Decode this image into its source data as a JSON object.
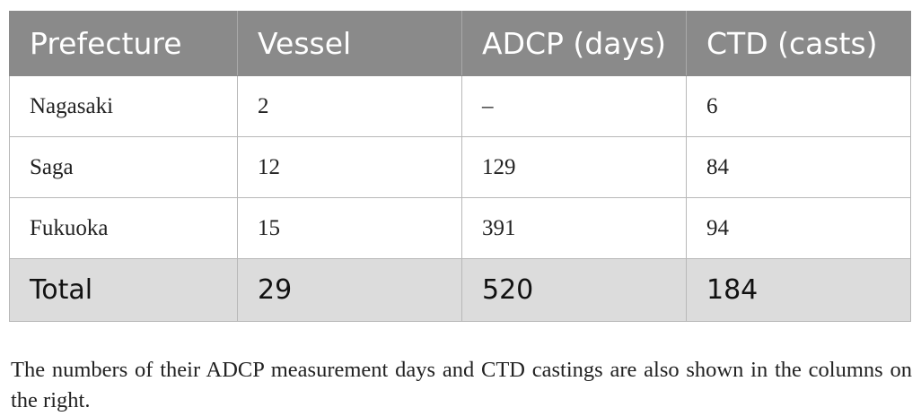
{
  "table": {
    "headers": [
      "Prefecture",
      "Vessel",
      "ADCP (days)",
      "CTD (casts)"
    ],
    "rows": [
      [
        "Nagasaki",
        "2",
        "–",
        "6"
      ],
      [
        "Saga",
        "12",
        "129",
        "84"
      ],
      [
        "Fukuoka",
        "15",
        "391",
        "94"
      ]
    ],
    "total": [
      "Total",
      "29",
      "520",
      "184"
    ]
  },
  "caption": "The numbers of their ADCP measurement days and CTD castings are also shown in the columns on the right."
}
